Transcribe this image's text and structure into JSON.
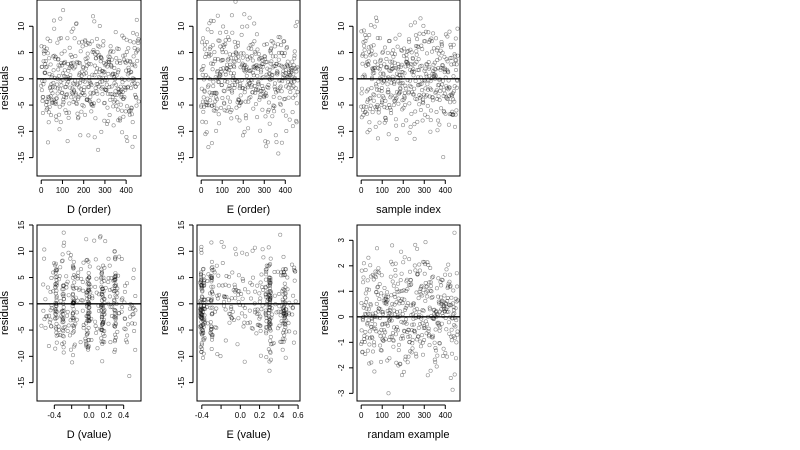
{
  "chart_data": [
    {
      "type": "scatter",
      "xlabel": "D (order)",
      "ylabel": "residuals",
      "x_ticks": [
        0,
        100,
        200,
        300,
        400
      ],
      "y_ticks": [
        -15,
        -10,
        -5,
        0,
        5,
        10
      ],
      "xlim": [
        -20,
        470
      ],
      "ylim": [
        -18.5,
        15
      ],
      "grid": false,
      "reference_line_y": 0,
      "x_distribution": {
        "kind": "index",
        "n": 460
      },
      "y_spread": 10,
      "seed": 11
    },
    {
      "type": "scatter",
      "xlabel": "E (order)",
      "ylabel": "residuals",
      "x_ticks": [
        0,
        100,
        200,
        300,
        400
      ],
      "y_ticks": [
        -15,
        -10,
        -5,
        0,
        5,
        10
      ],
      "xlim": [
        -20,
        470
      ],
      "ylim": [
        -18.5,
        15
      ],
      "grid": false,
      "reference_line_y": 0,
      "x_distribution": {
        "kind": "index",
        "n": 460
      },
      "y_spread": 10,
      "seed": 23
    },
    {
      "type": "scatter",
      "xlabel": "sample index",
      "ylabel": "residuals",
      "x_ticks": [
        0,
        100,
        200,
        300,
        400
      ],
      "y_ticks": [
        -15,
        -10,
        -5,
        0,
        5,
        10
      ],
      "xlim": [
        -20,
        470
      ],
      "ylim": [
        -18.5,
        15
      ],
      "grid": false,
      "reference_line_y": 0,
      "x_distribution": {
        "kind": "index",
        "n": 460
      },
      "y_spread": 10,
      "seed": 37
    },
    {
      "type": "scatter",
      "xlabel": "D (value)",
      "ylabel": "residuals",
      "x_ticks": [
        -0.4,
        -0.2,
        0.0,
        0.2,
        0.4
      ],
      "x_tick_labels": [
        "-0.4",
        "",
        "0.0",
        "0.2",
        "0.4"
      ],
      "y_ticks": [
        -15,
        -10,
        -5,
        0,
        5,
        10,
        15
      ],
      "xlim": [
        -0.6,
        0.6
      ],
      "ylim": [
        -18.5,
        15
      ],
      "grid": false,
      "reference_line_y": 0,
      "x_distribution": {
        "kind": "clustered",
        "n": 460,
        "range": [
          -0.55,
          0.55
        ],
        "clusters": [
          -0.38,
          -0.3,
          -0.18,
          -0.02,
          0.0,
          0.15,
          0.17,
          0.3
        ]
      },
      "y_spread": 10,
      "seed": 41
    },
    {
      "type": "scatter",
      "xlabel": "E (value)",
      "ylabel": "residuals",
      "x_ticks": [
        -0.4,
        -0.2,
        0.0,
        0.2,
        0.4,
        0.6
      ],
      "x_tick_labels": [
        "-0.4",
        "",
        "0.0",
        "0.2",
        "0.4",
        "0.6"
      ],
      "y_ticks": [
        -15,
        -10,
        -5,
        0,
        5,
        10,
        15
      ],
      "xlim": [
        -0.45,
        0.62
      ],
      "ylim": [
        -18.5,
        15
      ],
      "grid": false,
      "reference_line_y": 0,
      "x_distribution": {
        "kind": "clustered",
        "n": 460,
        "range": [
          -0.42,
          0.58
        ],
        "clusters": [
          -0.41,
          -0.4,
          -0.38,
          -0.3,
          0.27,
          0.3,
          0.31,
          0.45,
          0.47
        ]
      },
      "y_spread": 10,
      "seed": 53
    },
    {
      "type": "scatter",
      "xlabel": "randam example",
      "ylabel": "residuals",
      "x_ticks": [
        0,
        100,
        200,
        300,
        400
      ],
      "y_ticks": [
        -3,
        -2,
        -1,
        0,
        1,
        2,
        3
      ],
      "xlim": [
        -20,
        470
      ],
      "ylim": [
        -3.3,
        3.6
      ],
      "grid": false,
      "reference_line_y": 0,
      "x_distribution": {
        "kind": "index",
        "n": 460
      },
      "y_spread": 2.2,
      "seed": 67
    }
  ]
}
